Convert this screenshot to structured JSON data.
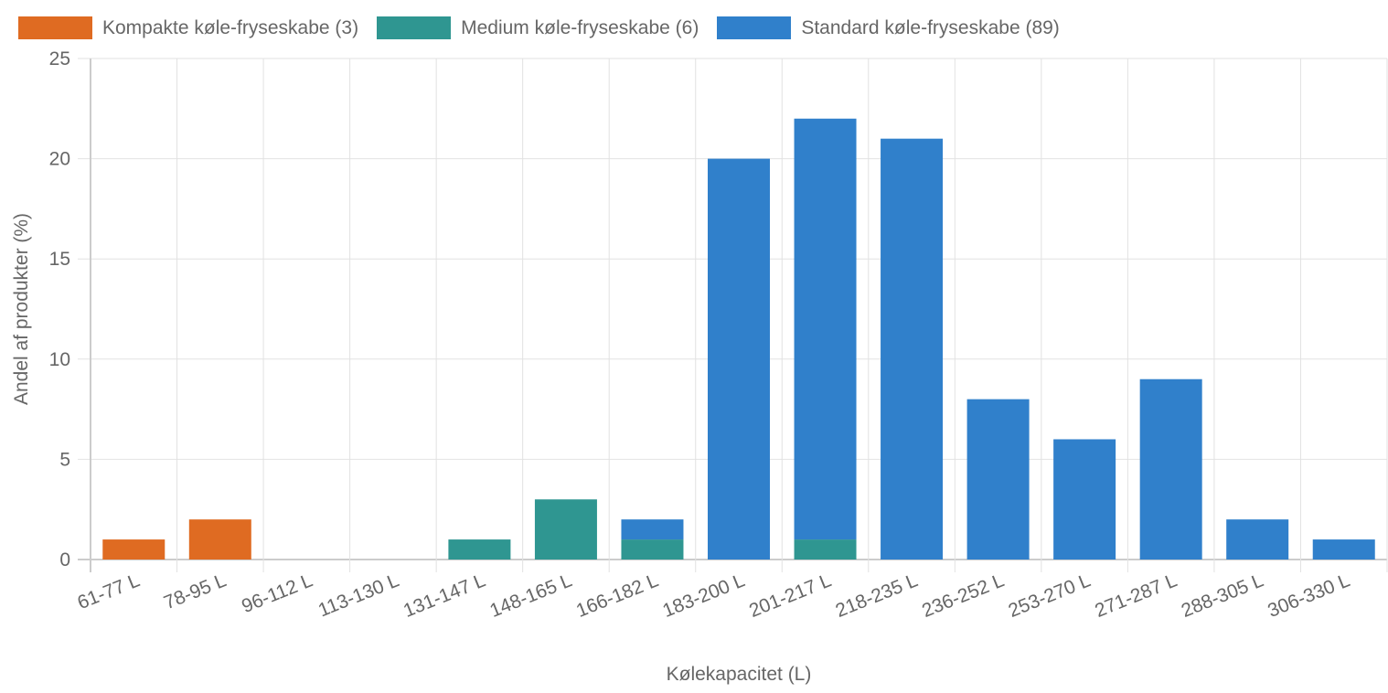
{
  "legend": [
    {
      "label": "Kompakte køle-fryseskabe (3)",
      "color": "#df6b22"
    },
    {
      "label": "Medium køle-fryseskabe (6)",
      "color": "#2f9691"
    },
    {
      "label": "Standard køle-fryseskabe (89)",
      "color": "#3080cb"
    }
  ],
  "chart_data": {
    "type": "bar",
    "stacked": true,
    "title": "",
    "xlabel": "Kølekapacitet (L)",
    "ylabel": "Andel af produkter (%)",
    "ylim": [
      0,
      25
    ],
    "yticks": [
      0,
      5,
      10,
      15,
      20,
      25
    ],
    "grid": true,
    "legend_position": "top",
    "categories": [
      "61-77 L",
      "78-95 L",
      "96-112 L",
      "113-130 L",
      "131-147 L",
      "148-165 L",
      "166-182 L",
      "183-200 L",
      "201-217 L",
      "218-235 L",
      "236-252 L",
      "253-270 L",
      "271-287 L",
      "288-305 L",
      "306-330 L"
    ],
    "series": [
      {
        "name": "Kompakte køle-fryseskabe (3)",
        "color": "#df6b22",
        "values": [
          1,
          2,
          0,
          0,
          0,
          0,
          0,
          0,
          0,
          0,
          0,
          0,
          0,
          0,
          0
        ]
      },
      {
        "name": "Medium køle-fryseskabe (6)",
        "color": "#2f9691",
        "values": [
          0,
          0,
          0,
          0,
          1,
          3,
          1,
          0,
          1,
          0,
          0,
          0,
          0,
          0,
          0
        ]
      },
      {
        "name": "Standard køle-fryseskabe (89)",
        "color": "#3080cb",
        "values": [
          0,
          0,
          0,
          0,
          0,
          0,
          1,
          20,
          21,
          21,
          8,
          6,
          9,
          2,
          1
        ]
      }
    ]
  }
}
